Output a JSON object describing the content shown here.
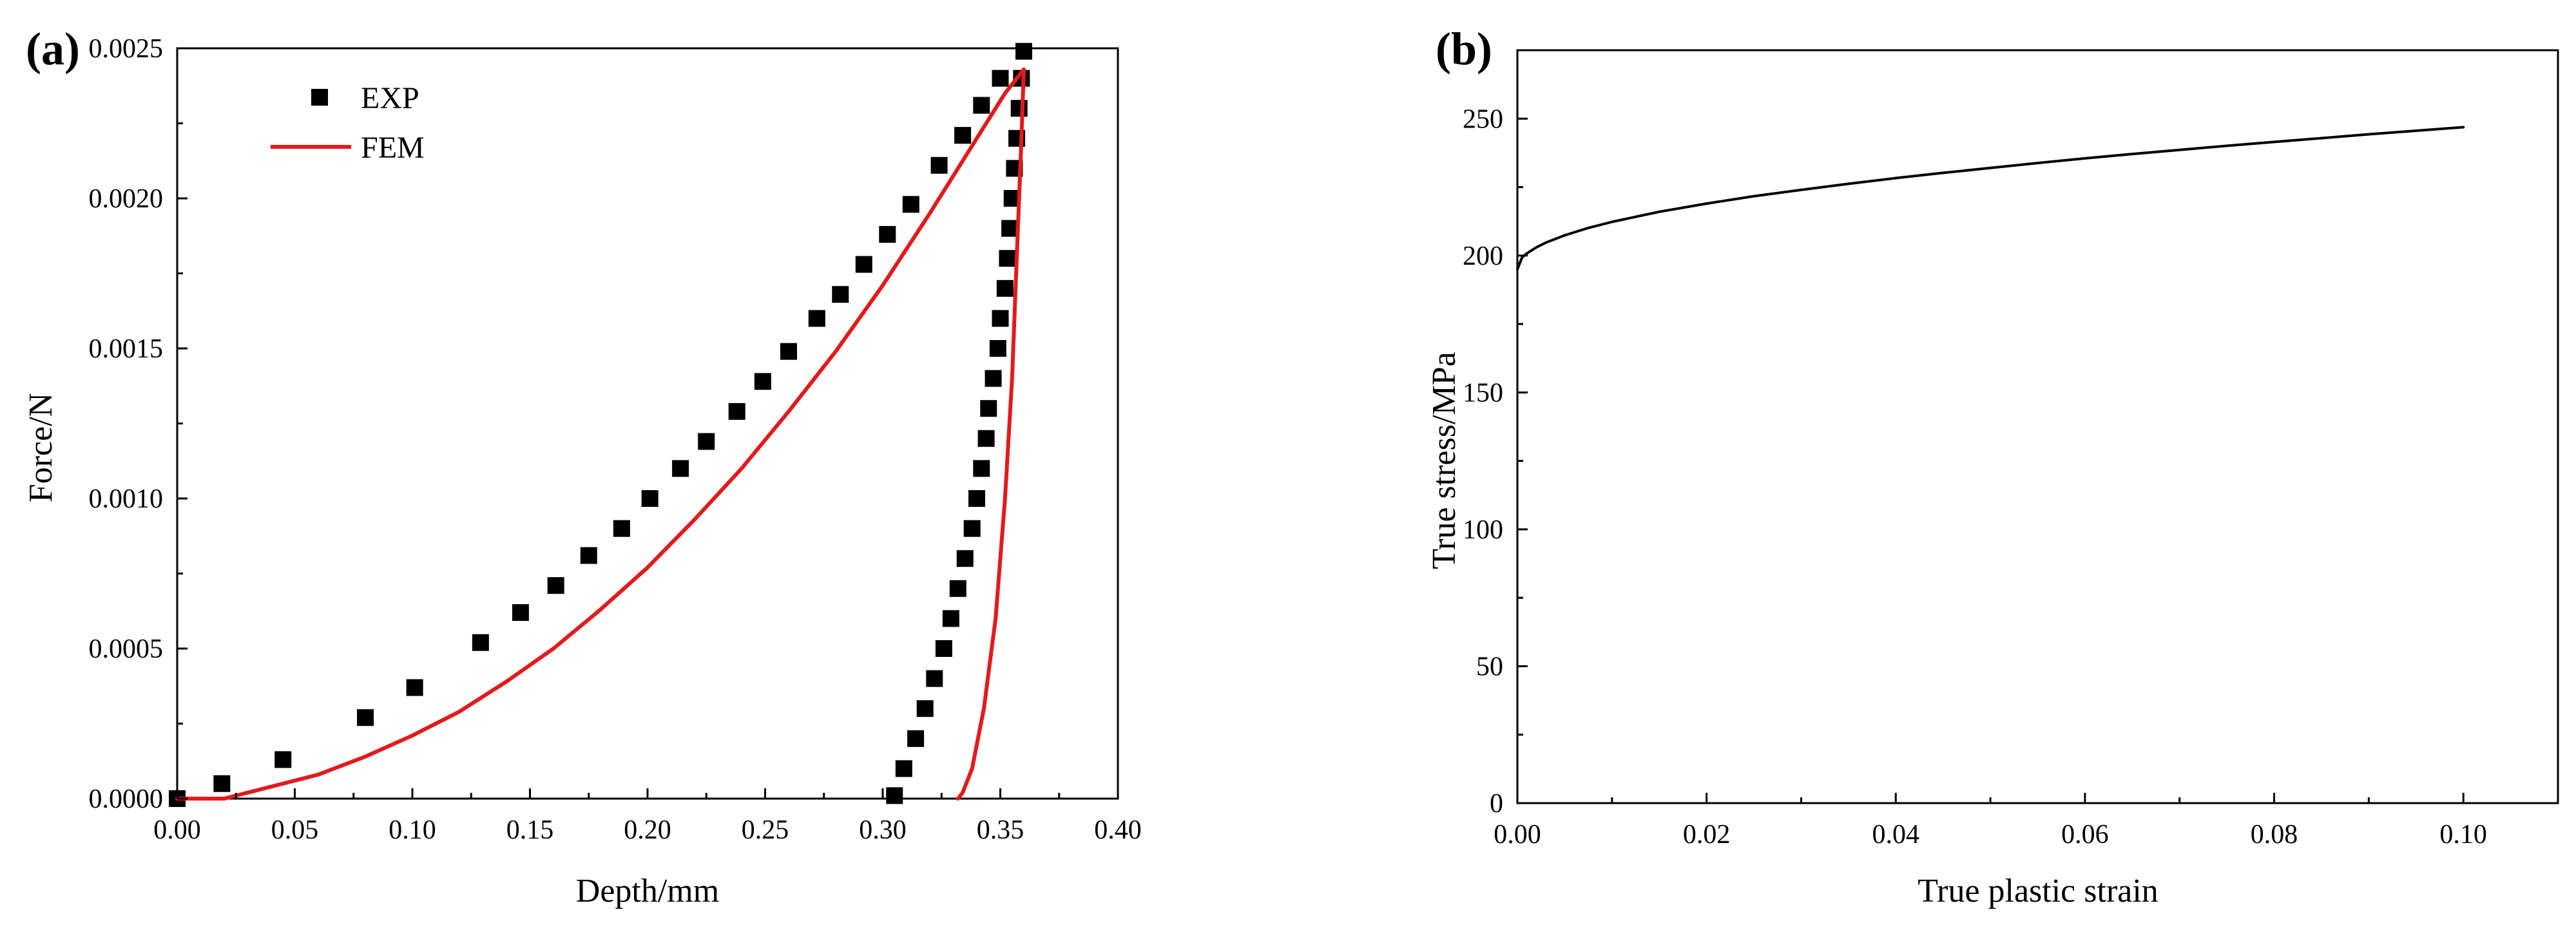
{
  "chart_data": [
    {
      "panel_label": "(a)",
      "type": "scatter",
      "xlabel": "Depth/mm",
      "ylabel": "Force/N",
      "xlim": [
        0,
        0.4
      ],
      "ylim": [
        0,
        0.0025
      ],
      "x_ticks": [
        "0.00",
        "0.05",
        "0.10",
        "0.15",
        "0.20",
        "0.25",
        "0.30",
        "0.35",
        "0.40"
      ],
      "y_ticks": [
        "0.0000",
        "0.0005",
        "0.0010",
        "0.0015",
        "0.0020",
        "0.0025"
      ],
      "legend_position": "top-left",
      "series": [
        {
          "name": "EXP",
          "mark": "square",
          "color": "#000000",
          "points": [
            [
              0.0,
              0.0
            ],
            [
              0.019,
              5e-05
            ],
            [
              0.045,
              0.00013
            ],
            [
              0.08,
              0.00027
            ],
            [
              0.101,
              0.00037
            ],
            [
              0.129,
              0.00052
            ],
            [
              0.146,
              0.00062
            ],
            [
              0.161,
              0.00071
            ],
            [
              0.175,
              0.00081
            ],
            [
              0.189,
              0.0009
            ],
            [
              0.201,
              0.001
            ],
            [
              0.214,
              0.0011
            ],
            [
              0.225,
              0.00119
            ],
            [
              0.238,
              0.00129
            ],
            [
              0.249,
              0.00139
            ],
            [
              0.26,
              0.00149
            ],
            [
              0.272,
              0.0016
            ],
            [
              0.282,
              0.00168
            ],
            [
              0.292,
              0.00178
            ],
            [
              0.302,
              0.00188
            ],
            [
              0.312,
              0.00198
            ],
            [
              0.324,
              0.00211
            ],
            [
              0.334,
              0.00221
            ],
            [
              0.342,
              0.00231
            ],
            [
              0.35,
              0.0024
            ],
            [
              0.36,
              0.00249
            ],
            [
              0.359,
              0.0024
            ],
            [
              0.358,
              0.0023
            ],
            [
              0.357,
              0.0022
            ],
            [
              0.356,
              0.0021
            ],
            [
              0.355,
              0.002
            ],
            [
              0.354,
              0.0019
            ],
            [
              0.353,
              0.0018
            ],
            [
              0.352,
              0.0017
            ],
            [
              0.35,
              0.0016
            ],
            [
              0.349,
              0.0015
            ],
            [
              0.347,
              0.0014
            ],
            [
              0.345,
              0.0013
            ],
            [
              0.344,
              0.0012
            ],
            [
              0.342,
              0.0011
            ],
            [
              0.34,
              0.001
            ],
            [
              0.338,
              0.0009
            ],
            [
              0.335,
              0.0008
            ],
            [
              0.332,
              0.0007
            ],
            [
              0.329,
              0.0006
            ],
            [
              0.326,
              0.0005
            ],
            [
              0.322,
              0.0004
            ],
            [
              0.318,
              0.0003
            ],
            [
              0.314,
              0.0002
            ],
            [
              0.309,
              0.0001
            ],
            [
              0.305,
              1e-05
            ]
          ]
        },
        {
          "name": "FEM",
          "mark": "line",
          "color": "#e31a1c",
          "points": [
            [
              0.0,
              0.0
            ],
            [
              0.02,
              0.0
            ],
            [
              0.04,
              4e-05
            ],
            [
              0.06,
              8e-05
            ],
            [
              0.08,
              0.00014
            ],
            [
              0.1,
              0.00021
            ],
            [
              0.12,
              0.00029
            ],
            [
              0.14,
              0.00039
            ],
            [
              0.16,
              0.0005
            ],
            [
              0.18,
              0.00063
            ],
            [
              0.2,
              0.00077
            ],
            [
              0.22,
              0.00093
            ],
            [
              0.24,
              0.0011
            ],
            [
              0.26,
              0.00129
            ],
            [
              0.28,
              0.00149
            ],
            [
              0.3,
              0.00171
            ],
            [
              0.32,
              0.00195
            ],
            [
              0.34,
              0.0022
            ],
            [
              0.352,
              0.00235
            ],
            [
              0.36,
              0.00243
            ],
            [
              0.359,
              0.0022
            ],
            [
              0.357,
              0.0018
            ],
            [
              0.355,
              0.0014
            ],
            [
              0.352,
              0.001
            ],
            [
              0.348,
              0.0006
            ],
            [
              0.343,
              0.0003
            ],
            [
              0.338,
              0.0001
            ],
            [
              0.334,
              2e-05
            ],
            [
              0.332,
              0.0
            ]
          ]
        }
      ]
    },
    {
      "panel_label": "(b)",
      "type": "line",
      "xlabel": "True plastic strain",
      "ylabel": "True stress/MPa",
      "xlim": [
        0,
        0.11
      ],
      "ylim": [
        0,
        275
      ],
      "x_ticks": [
        "0.00",
        "0.02",
        "0.04",
        "0.06",
        "0.08",
        "0.10"
      ],
      "y_ticks": [
        "0",
        "50",
        "100",
        "150",
        "200",
        "250"
      ],
      "series": [
        {
          "name": "True stress",
          "color": "#000000",
          "points": [
            [
              0.0,
              195.0
            ],
            [
              0.0005,
              199.3
            ],
            [
              0.001,
              200.8
            ],
            [
              0.002,
              203.0
            ],
            [
              0.003,
              204.7
            ],
            [
              0.005,
              207.4
            ],
            [
              0.0075,
              210.1
            ],
            [
              0.01,
              212.3
            ],
            [
              0.015,
              216.0
            ],
            [
              0.02,
              219.0
            ],
            [
              0.025,
              221.7
            ],
            [
              0.03,
              224.0
            ],
            [
              0.035,
              226.2
            ],
            [
              0.04,
              228.3
            ],
            [
              0.045,
              230.2
            ],
            [
              0.05,
              232.0
            ],
            [
              0.055,
              233.8
            ],
            [
              0.06,
              235.5
            ],
            [
              0.065,
              237.1
            ],
            [
              0.07,
              238.6
            ],
            [
              0.075,
              240.1
            ],
            [
              0.08,
              241.5
            ],
            [
              0.085,
              242.9
            ],
            [
              0.09,
              244.3
            ],
            [
              0.095,
              245.6
            ],
            [
              0.1,
              246.9
            ]
          ]
        }
      ]
    }
  ]
}
